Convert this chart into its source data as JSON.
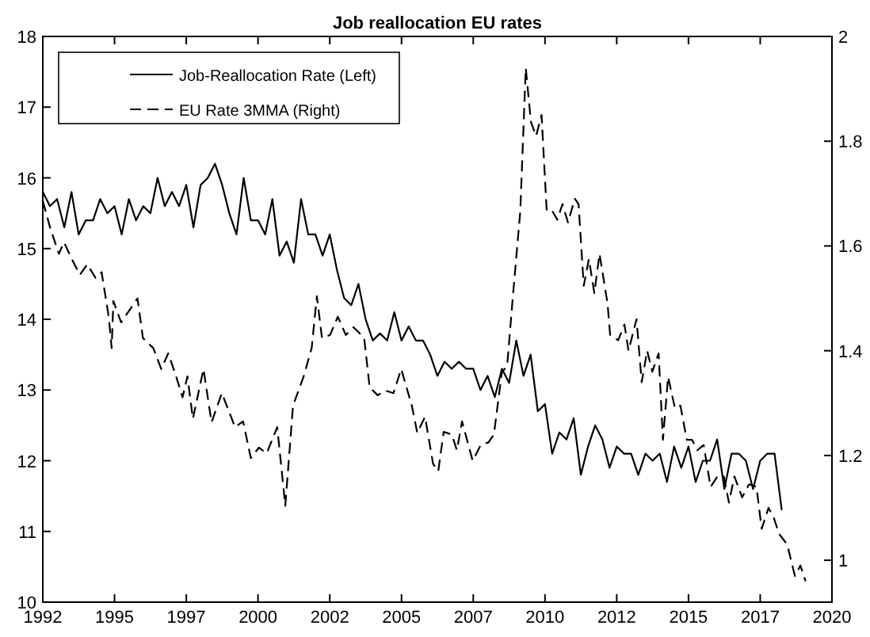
{
  "chart_data": {
    "type": "line",
    "title": "Job reallocation EU rates",
    "legend": "top left",
    "grid": false,
    "xlim": [
      1992.5,
      2020
    ],
    "xticks": [
      {
        "value": 1992.5,
        "label": "1992"
      },
      1995,
      {
        "value": 1997.5,
        "label": "1997"
      },
      2000,
      {
        "value": 2002.5,
        "label": "2002"
      },
      2005,
      {
        "value": 2007.5,
        "label": "2007"
      },
      2010,
      {
        "value": 2012.5,
        "label": "2012"
      },
      2015,
      {
        "value": 2017.5,
        "label": "2017"
      },
      2020
    ],
    "ylim": [
      10,
      18
    ],
    "yticks": [
      10,
      11,
      12,
      13,
      14,
      15,
      16,
      17,
      18
    ],
    "y2lim": [
      0.92,
      2
    ],
    "y2ticks": [
      1,
      1.2,
      1.4,
      1.6,
      1.8,
      2
    ],
    "series": [
      {
        "name": "Job-Reallocation Rate (Left)",
        "color": "#000000",
        "line_style": "solid",
        "x": [
          1992.5,
          1992.75,
          1993,
          1993.25,
          1993.5,
          1993.75,
          1994,
          1994.25,
          1994.5,
          1994.75,
          1995,
          1995.25,
          1995.5,
          1995.75,
          1996,
          1996.25,
          1996.5,
          1996.75,
          1997,
          1997.25,
          1997.5,
          1997.75,
          1998,
          1998.25,
          1998.5,
          1998.75,
          1999,
          1999.25,
          1999.5,
          1999.75,
          2000,
          2000.25,
          2000.5,
          2000.75,
          2001,
          2001.25,
          2001.5,
          2001.75,
          2002,
          2002.25,
          2002.5,
          2002.75,
          2003,
          2003.25,
          2003.5,
          2003.75,
          2004,
          2004.25,
          2004.5,
          2004.75,
          2005,
          2005.25,
          2005.5,
          2005.75,
          2006,
          2006.25,
          2006.5,
          2006.75,
          2007,
          2007.25,
          2007.5,
          2007.75,
          2008,
          2008.25,
          2008.5,
          2008.75,
          2009,
          2009.25,
          2009.5,
          2009.75,
          2010,
          2010.25,
          2010.5,
          2010.75,
          2011,
          2011.25,
          2011.5,
          2011.75,
          2012,
          2012.25,
          2012.5,
          2012.75,
          2013,
          2013.25,
          2013.5,
          2013.75,
          2014,
          2014.25,
          2014.5,
          2014.75,
          2015,
          2015.25,
          2015.5,
          2015.75,
          2016,
          2016.25,
          2016.5,
          2016.75,
          2017,
          2017.25,
          2017.5,
          2017.75,
          2018,
          2018.25
        ],
        "values": [
          15.8,
          15.6,
          15.7,
          15.3,
          15.8,
          15.2,
          15.4,
          15.4,
          15.7,
          15.5,
          15.6,
          15.2,
          15.7,
          15.4,
          15.6,
          15.5,
          16.0,
          15.6,
          15.8,
          15.6,
          15.9,
          15.3,
          15.9,
          16.0,
          16.2,
          15.9,
          15.5,
          15.2,
          16.0,
          15.4,
          15.4,
          15.2,
          15.7,
          14.9,
          15.1,
          14.8,
          15.7,
          15.2,
          15.2,
          14.9,
          15.2,
          14.7,
          14.3,
          14.2,
          14.5,
          14.0,
          13.7,
          13.8,
          13.7,
          14.1,
          13.7,
          13.9,
          13.7,
          13.7,
          13.5,
          13.2,
          13.4,
          13.3,
          13.4,
          13.3,
          13.3,
          13.0,
          13.2,
          12.9,
          13.3,
          13.1,
          13.7,
          13.2,
          13.5,
          12.7,
          12.8,
          12.1,
          12.4,
          12.3,
          12.6,
          11.8,
          12.2,
          12.5,
          12.3,
          11.9,
          12.2,
          12.1,
          12.1,
          11.8,
          12.1,
          12.0,
          12.1,
          11.7,
          12.2,
          11.9,
          12.2,
          11.7,
          12.0,
          12.0,
          12.3,
          11.6,
          12.1,
          12.1,
          12.0,
          11.6,
          12.0,
          12.1,
          12.1,
          11.3
        ]
      },
      {
        "name": "EU Rate 3MMA (Right)",
        "color": "#000000",
        "line_style": "dashed",
        "axis": "y2",
        "x": [
          1992.5,
          1992.75,
          1993.06,
          1993.24,
          1993.52,
          1993.79,
          1994.05,
          1994.34,
          1994.55,
          1994.8,
          1994.9,
          1994.96,
          1995.23,
          1995.8,
          1995.99,
          1996.35,
          1996.63,
          1996.87,
          1997.13,
          1997.37,
          1997.54,
          1997.73,
          1998.1,
          1998.38,
          1998.74,
          1999.2,
          1999.48,
          1999.75,
          2000.03,
          2000.3,
          2000.67,
          2000.95,
          2001.22,
          2001.59,
          2001.87,
          2002.05,
          2002.23,
          2002.51,
          2002.78,
          2003.06,
          2003.33,
          2003.7,
          2003.89,
          2004.17,
          2004.44,
          2004.72,
          2004.99,
          2005.36,
          2005.55,
          2005.82,
          2006.1,
          2006.28,
          2006.47,
          2006.75,
          2006.93,
          2007.11,
          2007.48,
          2007.76,
          2008.03,
          2008.22,
          2008.5,
          2008.68,
          2008.86,
          2009.14,
          2009.33,
          2009.51,
          2009.69,
          2009.88,
          2010.06,
          2010.25,
          2010.43,
          2010.61,
          2010.8,
          2011.04,
          2011.17,
          2011.35,
          2011.53,
          2011.72,
          2011.9,
          2012.18,
          2012.27,
          2012.55,
          2012.77,
          2012.91,
          2013.19,
          2013.37,
          2013.56,
          2013.74,
          2013.96,
          2014.11,
          2014.29,
          2014.53,
          2014.72,
          2014.94,
          2015.12,
          2015.31,
          2015.53,
          2015.77,
          2016.01,
          2016.23,
          2016.41,
          2016.6,
          2016.87,
          2017.11,
          2017.37,
          2017.55,
          2017.79,
          2017.98,
          2018.16,
          2018.44,
          2018.71,
          2018.9,
          2019.08
        ],
        "values": [
          1.686,
          1.636,
          1.585,
          1.607,
          1.574,
          1.545,
          1.565,
          1.539,
          1.55,
          1.464,
          1.405,
          1.495,
          1.454,
          1.5,
          1.424,
          1.405,
          1.365,
          1.395,
          1.354,
          1.311,
          1.351,
          1.27,
          1.365,
          1.263,
          1.319,
          1.254,
          1.265,
          1.195,
          1.215,
          1.204,
          1.254,
          1.104,
          1.295,
          1.351,
          1.405,
          1.504,
          1.424,
          1.43,
          1.465,
          1.43,
          1.445,
          1.424,
          1.33,
          1.315,
          1.324,
          1.319,
          1.365,
          1.295,
          1.243,
          1.274,
          1.184,
          1.17,
          1.245,
          1.24,
          1.21,
          1.265,
          1.19,
          1.22,
          1.225,
          1.24,
          1.36,
          1.37,
          1.49,
          1.667,
          1.94,
          1.837,
          1.81,
          1.85,
          1.667,
          1.667,
          1.65,
          1.68,
          1.645,
          1.69,
          1.68,
          1.524,
          1.575,
          1.51,
          1.585,
          1.49,
          1.43,
          1.42,
          1.45,
          1.4,
          1.46,
          1.34,
          1.4,
          1.36,
          1.395,
          1.23,
          1.35,
          1.29,
          1.295,
          1.23,
          1.23,
          1.21,
          1.22,
          1.14,
          1.16,
          1.16,
          1.11,
          1.16,
          1.12,
          1.145,
          1.14,
          1.06,
          1.1,
          1.08,
          1.05,
          1.03,
          0.97,
          0.99,
          0.96
        ]
      }
    ]
  }
}
